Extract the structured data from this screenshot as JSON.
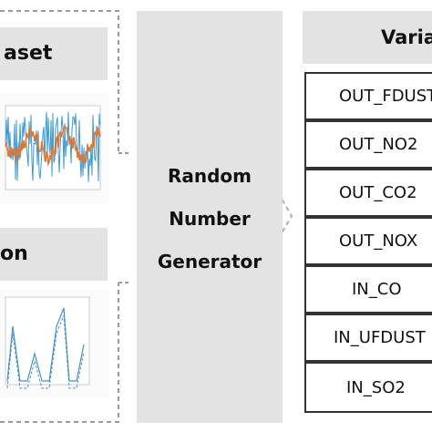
{
  "left_panel": {
    "dataset_label": "aset",
    "simulation_label": "on"
  },
  "generator": {
    "lines": [
      "Random",
      "Number",
      "Generator"
    ]
  },
  "variables": {
    "header": "Varia",
    "items": [
      "OUT_FDUST",
      "OUT_NO2",
      "OUT_CO2",
      "OUT_NOX",
      "IN_CO",
      "IN_UFDUST",
      "IN_SO2"
    ]
  },
  "colors": {
    "band": "#e3e3e3",
    "series_blue": "#3a9ad9",
    "series_orange": "#e8762a",
    "sim_line": "#4a90c8",
    "border": "#333333",
    "dashed": "#9a9a9a"
  }
}
